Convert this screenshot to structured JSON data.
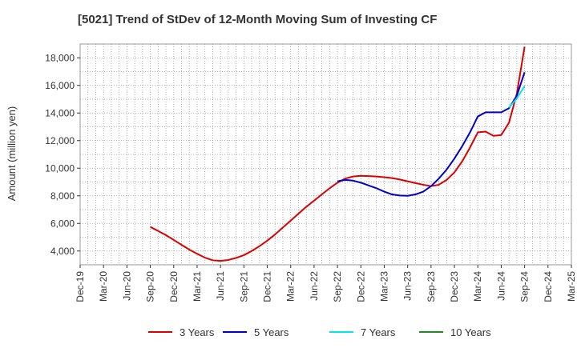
{
  "chart_data": {
    "type": "line",
    "title": "[5021]  Trend of StDev of 12-Month Moving Sum of Investing CF",
    "xlabel": "",
    "ylabel": "Amount (million yen)",
    "ylim": [
      3000,
      19000
    ],
    "yticks": [
      4000,
      6000,
      8000,
      10000,
      12000,
      14000,
      16000,
      18000
    ],
    "ytick_labels": [
      "4,000",
      "6,000",
      "8,000",
      "10,000",
      "12,000",
      "14,000",
      "16,000",
      "18,000"
    ],
    "xtick_labels": [
      "Dec-19",
      "Mar-20",
      "Jun-20",
      "Sep-20",
      "Dec-20",
      "Mar-21",
      "Jun-21",
      "Sep-21",
      "Dec-21",
      "Mar-22",
      "Jun-22",
      "Sep-22",
      "Dec-22",
      "Mar-23",
      "Jun-23",
      "Sep-23",
      "Dec-23",
      "Mar-24",
      "Jun-24",
      "Sep-24",
      "Dec-24",
      "Mar-25"
    ],
    "grid": true,
    "legend_position": "bottom",
    "series": [
      {
        "name": "3 Years",
        "color": "#dd0000",
        "points": [
          [
            "Sep-20",
            5750
          ],
          [
            "Oct-20",
            5450
          ],
          [
            "Nov-20",
            5150
          ],
          [
            "Dec-20",
            4800
          ],
          [
            "Jan-21",
            4450
          ],
          [
            "Feb-21",
            4100
          ],
          [
            "Mar-21",
            3800
          ],
          [
            "Apr-21",
            3520
          ],
          [
            "May-21",
            3330
          ],
          [
            "Jun-21",
            3280
          ],
          [
            "Jul-21",
            3350
          ],
          [
            "Aug-21",
            3500
          ],
          [
            "Sep-21",
            3700
          ],
          [
            "Oct-21",
            4000
          ],
          [
            "Nov-21",
            4350
          ],
          [
            "Dec-21",
            4750
          ],
          [
            "Jan-22",
            5200
          ],
          [
            "Feb-22",
            5700
          ],
          [
            "Mar-22",
            6200
          ],
          [
            "Apr-22",
            6700
          ],
          [
            "May-22",
            7200
          ],
          [
            "Jun-22",
            7650
          ],
          [
            "Jul-22",
            8100
          ],
          [
            "Aug-22",
            8550
          ],
          [
            "Sep-22",
            8950
          ],
          [
            "Oct-22",
            9250
          ],
          [
            "Nov-22",
            9400
          ],
          [
            "Dec-22",
            9450
          ],
          [
            "Jan-23",
            9430
          ],
          [
            "Feb-23",
            9400
          ],
          [
            "Mar-23",
            9350
          ],
          [
            "Apr-23",
            9280
          ],
          [
            "May-23",
            9180
          ],
          [
            "Jun-23",
            9050
          ],
          [
            "Jul-23",
            8920
          ],
          [
            "Aug-23",
            8800
          ],
          [
            "Sep-23",
            8700
          ],
          [
            "Oct-23",
            8800
          ],
          [
            "Nov-23",
            9150
          ],
          [
            "Dec-23",
            9700
          ],
          [
            "Jan-24",
            10500
          ],
          [
            "Feb-24",
            11500
          ],
          [
            "Mar-24",
            12600
          ],
          [
            "Apr-24",
            12650
          ],
          [
            "May-24",
            12350
          ],
          [
            "Jun-24",
            12400
          ],
          [
            "Jul-24",
            13300
          ],
          [
            "Aug-24",
            15400
          ],
          [
            "Sep-24",
            18800
          ]
        ]
      },
      {
        "name": "5 Years",
        "color": "#0000cc",
        "points": [
          [
            "Sep-22",
            9050
          ],
          [
            "Oct-22",
            9150
          ],
          [
            "Nov-22",
            9100
          ],
          [
            "Dec-22",
            8950
          ],
          [
            "Jan-23",
            8750
          ],
          [
            "Feb-23",
            8550
          ],
          [
            "Mar-23",
            8300
          ],
          [
            "Apr-23",
            8100
          ],
          [
            "May-23",
            8020
          ],
          [
            "Jun-23",
            8000
          ],
          [
            "Jul-23",
            8100
          ],
          [
            "Aug-23",
            8300
          ],
          [
            "Sep-23",
            8700
          ],
          [
            "Oct-23",
            9250
          ],
          [
            "Nov-23",
            9900
          ],
          [
            "Dec-23",
            10700
          ],
          [
            "Jan-24",
            11600
          ],
          [
            "Feb-24",
            12600
          ],
          [
            "Mar-24",
            13750
          ],
          [
            "Apr-24",
            14050
          ],
          [
            "May-24",
            14050
          ],
          [
            "Jun-24",
            14050
          ],
          [
            "Jul-24",
            14350
          ],
          [
            "Aug-24",
            15250
          ],
          [
            "Sep-24",
            16950
          ]
        ]
      },
      {
        "name": "7 Years",
        "color": "#00e5ee",
        "points": [
          [
            "Jul-24",
            14400
          ],
          [
            "Aug-24",
            15050
          ],
          [
            "Sep-24",
            15950
          ]
        ]
      },
      {
        "name": "10 Years",
        "color": "#228b22",
        "points": []
      }
    ]
  }
}
